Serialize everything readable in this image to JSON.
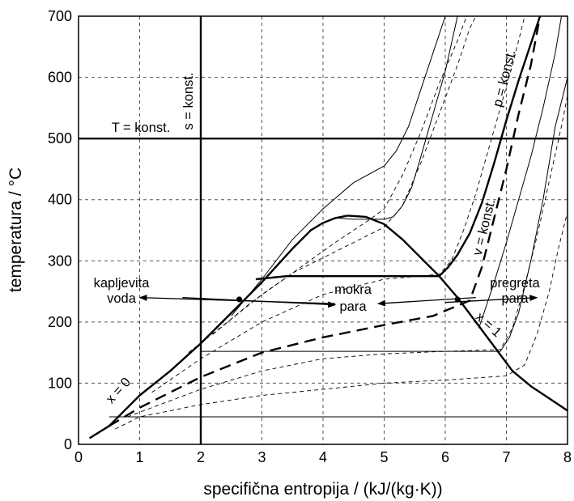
{
  "chart_data": {
    "type": "line",
    "title": "",
    "xlabel": "specifična entropija / (kJ/(kg·K))",
    "ylabel": "temperatura / °C",
    "xlim": [
      0,
      8
    ],
    "ylim": [
      0,
      700
    ],
    "xticks": [
      "0",
      "1",
      "2",
      "3",
      "4",
      "5",
      "6",
      "7",
      "8"
    ],
    "yticks": [
      "0",
      "100",
      "200",
      "300",
      "400",
      "500",
      "600",
      "700"
    ],
    "grid": "dashed",
    "saturation_dome": {
      "liquid_line_x0": [
        [
          0.18,
          10
        ],
        [
          0.5,
          30
        ],
        [
          1.0,
          80
        ],
        [
          1.5,
          120
        ],
        [
          2.0,
          165
        ],
        [
          2.5,
          215
        ],
        [
          3.0,
          265
        ],
        [
          3.5,
          320
        ],
        [
          3.8,
          350
        ],
        [
          4.0,
          362
        ],
        [
          4.2,
          370
        ],
        [
          4.4,
          374
        ]
      ],
      "vapor_line_x1": [
        [
          4.4,
          374
        ],
        [
          4.7,
          372
        ],
        [
          5.0,
          360
        ],
        [
          5.3,
          335
        ],
        [
          5.6,
          305
        ],
        [
          5.9,
          275
        ],
        [
          6.2,
          240
        ],
        [
          6.5,
          200
        ],
        [
          6.8,
          160
        ],
        [
          7.1,
          120
        ],
        [
          7.4,
          95
        ],
        [
          7.7,
          75
        ],
        [
          8.0,
          55
        ]
      ],
      "critical_point": [
        4.41,
        374
      ]
    },
    "isobars_heavy": [
      {
        "points": [
          [
            2.9,
            270
          ],
          [
            3.4,
            275
          ],
          [
            4.0,
            275
          ],
          [
            5.0,
            275
          ],
          [
            5.9,
            275
          ],
          [
            6.05,
            290
          ],
          [
            6.2,
            310
          ],
          [
            6.4,
            345
          ],
          [
            6.6,
            395
          ],
          [
            6.8,
            460
          ],
          [
            7.0,
            530
          ],
          [
            7.2,
            595
          ],
          [
            7.4,
            655
          ],
          [
            7.55,
            700
          ]
        ]
      }
    ],
    "isobars_thin": [
      {
        "points": [
          [
            0.5,
            45
          ],
          [
            2.0,
            45
          ],
          [
            4.0,
            45
          ],
          [
            6.0,
            45
          ],
          [
            8.0,
            45
          ]
        ]
      },
      {
        "points": [
          [
            2.0,
            152
          ],
          [
            4.0,
            152
          ],
          [
            6.0,
            152
          ],
          [
            6.9,
            152
          ],
          [
            7.05,
            175
          ],
          [
            7.2,
            215
          ],
          [
            7.4,
            300
          ],
          [
            7.6,
            400
          ],
          [
            7.8,
            520
          ],
          [
            8.0,
            600
          ]
        ]
      },
      {
        "points": [
          [
            4.2,
            370
          ],
          [
            4.5,
            368
          ],
          [
            5.0,
            368
          ],
          [
            5.15,
            372
          ],
          [
            5.3,
            390
          ],
          [
            5.45,
            420
          ],
          [
            5.6,
            470
          ],
          [
            5.8,
            540
          ],
          [
            6.0,
            610
          ],
          [
            6.2,
            700
          ]
        ]
      },
      {
        "points": [
          [
            2.5,
            210
          ],
          [
            3.0,
            270
          ],
          [
            3.5,
            335
          ],
          [
            4.0,
            385
          ],
          [
            4.5,
            428
          ],
          [
            5.0,
            455
          ],
          [
            5.2,
            480
          ],
          [
            5.4,
            520
          ],
          [
            5.6,
            580
          ],
          [
            5.8,
            640
          ],
          [
            6.0,
            700
          ]
        ]
      },
      {
        "points": [
          [
            6.55,
            190
          ],
          [
            6.65,
            220
          ],
          [
            6.8,
            265
          ],
          [
            7.0,
            330
          ],
          [
            7.2,
            400
          ],
          [
            7.4,
            470
          ],
          [
            7.6,
            550
          ],
          [
            7.8,
            640
          ],
          [
            7.9,
            700
          ]
        ]
      }
    ],
    "isochores_dashed": [
      {
        "points": [
          [
            0.6,
            25
          ],
          [
            1.0,
            45
          ],
          [
            2.0,
            65
          ],
          [
            3.0,
            80
          ],
          [
            4.0,
            90
          ],
          [
            5.0,
            100
          ],
          [
            6.0,
            105
          ],
          [
            7.0,
            112
          ],
          [
            7.3,
            130
          ],
          [
            7.5,
            180
          ],
          [
            7.7,
            250
          ],
          [
            7.85,
            320
          ],
          [
            8.0,
            380
          ]
        ]
      },
      {
        "points": [
          [
            0.8,
            45
          ],
          [
            2.0,
            90
          ],
          [
            3.0,
            120
          ],
          [
            4.0,
            140
          ],
          [
            5.0,
            148
          ],
          [
            6.0,
            152
          ],
          [
            6.9,
            155
          ],
          [
            7.1,
            190
          ],
          [
            7.3,
            260
          ],
          [
            7.5,
            340
          ],
          [
            7.7,
            430
          ],
          [
            7.9,
            520
          ],
          [
            8.0,
            570
          ]
        ]
      },
      {
        "points": [
          [
            1.2,
            85
          ],
          [
            2.0,
            140
          ],
          [
            3.0,
            200
          ],
          [
            4.0,
            245
          ],
          [
            5.0,
            270
          ],
          [
            5.9,
            278
          ],
          [
            6.1,
            300
          ],
          [
            6.3,
            350
          ],
          [
            6.5,
            410
          ],
          [
            6.7,
            480
          ],
          [
            6.9,
            550
          ],
          [
            7.1,
            620
          ],
          [
            7.3,
            700
          ]
        ]
      },
      {
        "points": [
          [
            1.8,
            150
          ],
          [
            2.5,
            205
          ],
          [
            3.0,
            245
          ],
          [
            3.5,
            280
          ],
          [
            4.0,
            305
          ],
          [
            4.5,
            330
          ],
          [
            5.0,
            355
          ],
          [
            5.3,
            390
          ],
          [
            5.6,
            460
          ],
          [
            5.9,
            540
          ],
          [
            6.2,
            620
          ],
          [
            6.4,
            680
          ],
          [
            6.5,
            700
          ]
        ]
      },
      {
        "points": [
          [
            2.2,
            180
          ],
          [
            2.8,
            230
          ],
          [
            3.5,
            280
          ],
          [
            4.2,
            330
          ],
          [
            4.8,
            370
          ],
          [
            5.0,
            385
          ],
          [
            5.3,
            440
          ],
          [
            5.6,
            510
          ],
          [
            5.9,
            590
          ],
          [
            6.2,
            660
          ],
          [
            6.35,
            700
          ]
        ]
      }
    ],
    "isochore_heavy_dashed": {
      "points": [
        [
          0.5,
          30
        ],
        [
          1.0,
          60
        ],
        [
          2.0,
          110
        ],
        [
          3.0,
          150
        ],
        [
          4.0,
          175
        ],
        [
          5.0,
          195
        ],
        [
          5.8,
          210
        ],
        [
          6.4,
          235
        ],
        [
          6.6,
          290
        ],
        [
          6.8,
          370
        ],
        [
          7.0,
          450
        ],
        [
          7.2,
          540
        ],
        [
          7.4,
          620
        ],
        [
          7.55,
          700
        ]
      ]
    },
    "constant_s_x": 2.0,
    "constant_T_y": 500,
    "state_points": [
      [
        2.63,
        237
      ],
      [
        6.2,
        237
      ]
    ],
    "arrows": [
      {
        "from": [
          4.2,
          230
        ],
        "to": [
          1.0,
          240
        ]
      },
      {
        "from": [
          1.7,
          240
        ],
        "to": [
          4.2,
          228
        ]
      },
      {
        "from": [
          6.5,
          240
        ],
        "to": [
          4.9,
          230
        ]
      },
      {
        "from": [
          6.0,
          232
        ],
        "to": [
          7.5,
          240
        ]
      }
    ],
    "labels": {
      "s_const": "s = konst.",
      "T_const": "T = konst.",
      "p_const": "p = konst.",
      "v_const": "v = konst.",
      "x0": "x = 0",
      "x1": "x = 1",
      "liquid_1": "kapljevita",
      "liquid_2": "voda",
      "wet_1": "mokra",
      "wet_2": "para",
      "super_1": "pregreta",
      "super_2": "para"
    }
  }
}
